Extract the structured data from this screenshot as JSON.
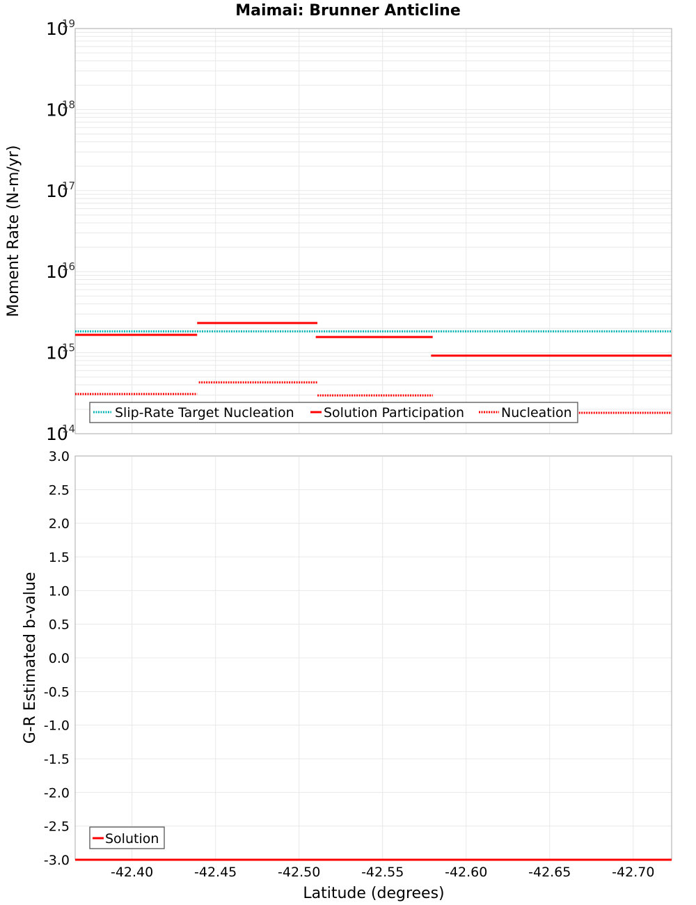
{
  "title": "Maimai: Brunner Anticline",
  "colors": {
    "target": "#00b3b3",
    "solution": "#ff0000",
    "grid": "#e8e8e8",
    "frame": "#aaaaaa"
  },
  "chart_data": [
    {
      "type": "line",
      "title": "Maimai: Brunner Anticline",
      "xlabel": "Latitude (degrees)",
      "ylabel": "Moment Rate (N-m/yr)",
      "yscale": "log",
      "ylim": [
        100000000000000.0,
        1e+19
      ],
      "xlim": [
        -42.366,
        -42.723
      ],
      "x_reversed": true,
      "grid": true,
      "y_tick_labels": [
        {
          "base": "10",
          "exp": "14"
        },
        {
          "base": "10",
          "exp": "15"
        },
        {
          "base": "10",
          "exp": "16"
        },
        {
          "base": "10",
          "exp": "17"
        },
        {
          "base": "10",
          "exp": "18"
        },
        {
          "base": "10",
          "exp": "19"
        }
      ],
      "legend": {
        "position": "lower-left",
        "entries": [
          "Slip-Rate Target Nucleation",
          "Solution Participation",
          "Nucleation"
        ]
      },
      "series": [
        {
          "name": "Slip-Rate Target Nucleation",
          "style": "dotted",
          "color": "#00b3b3",
          "segments": [
            {
              "x": [
                -42.366,
                -42.723
              ],
              "y": 1830000000000000.0
            }
          ]
        },
        {
          "name": "Solution Participation",
          "style": "solid",
          "color": "#ff0000",
          "segments": [
            {
              "x": [
                -42.366,
                -42.439
              ],
              "y": 1660000000000000.0
            },
            {
              "x": [
                -42.439,
                -42.511
              ],
              "y": 2320000000000000.0
            },
            {
              "x": [
                -42.51,
                -42.58
              ],
              "y": 1560000000000000.0
            },
            {
              "x": [
                -42.579,
                -42.723
              ],
              "y": 920000000000000.0
            }
          ]
        },
        {
          "name": "Nucleation",
          "style": "dotted",
          "color": "#ff0000",
          "segments": [
            {
              "x": [
                -42.366,
                -42.439
              ],
              "y": 309000000000000.0
            },
            {
              "x": [
                -42.44,
                -42.511
              ],
              "y": 430000000000000.0
            },
            {
              "x": [
                -42.511,
                -42.58
              ],
              "y": 297000000000000.0
            },
            {
              "x": [
                -42.58,
                -42.723
              ],
              "y": 181000000000000.0
            }
          ]
        }
      ]
    },
    {
      "type": "line",
      "title": "",
      "xlabel": "Latitude (degrees)",
      "ylabel": "G-R Estimated b-value",
      "ylim": [
        -3.0,
        3.0
      ],
      "xlim": [
        -42.366,
        -42.723
      ],
      "x_reversed": true,
      "grid": true,
      "y_ticks": [
        "3.0",
        "2.5",
        "2.0",
        "1.5",
        "1.0",
        "0.5",
        "0.0",
        "-0.5",
        "-1.0",
        "-1.5",
        "-2.0",
        "-2.5",
        "-3.0"
      ],
      "x_ticks": [
        "-42.40",
        "-42.45",
        "-42.50",
        "-42.55",
        "-42.60",
        "-42.65",
        "-42.70"
      ],
      "legend": {
        "position": "lower-left",
        "entries": [
          "Solution"
        ]
      },
      "series": [
        {
          "name": "Solution",
          "style": "solid",
          "color": "#ff0000",
          "segments": [
            {
              "x": [
                -42.366,
                -42.723
              ],
              "y": -3.0
            }
          ]
        }
      ]
    }
  ]
}
